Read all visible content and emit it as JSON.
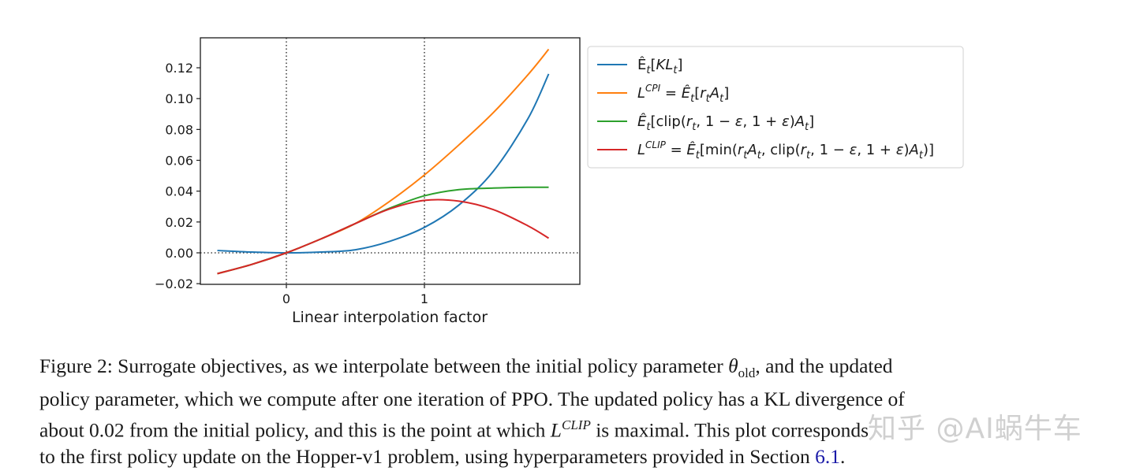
{
  "chart_data": {
    "type": "line",
    "title": "",
    "xlabel": "Linear interpolation factor",
    "ylabel": "",
    "xlim": [
      -0.62,
      2.12
    ],
    "ylim": [
      -0.0205,
      0.139
    ],
    "xticks": [
      0,
      1
    ],
    "xtick_labels": [
      "0",
      "1"
    ],
    "yticks": [
      -0.02,
      0.0,
      0.02,
      0.04,
      0.06,
      0.08,
      0.1,
      0.12
    ],
    "ytick_labels": [
      "−0.02",
      "0.00",
      "0.02",
      "0.04",
      "0.06",
      "0.08",
      "0.10",
      "0.12"
    ],
    "grid": false,
    "reference_lines": [
      {
        "orientation": "vertical",
        "x": 0,
        "style": "dotted"
      },
      {
        "orientation": "vertical",
        "x": 1,
        "style": "dotted"
      },
      {
        "orientation": "horizontal",
        "y": 0,
        "style": "dotted"
      }
    ],
    "legend_position": "outside right, upper",
    "x": [
      -0.5,
      -0.25,
      0.0,
      0.25,
      0.5,
      0.75,
      1.0,
      1.25,
      1.5,
      1.75,
      1.9
    ],
    "series": [
      {
        "name": "Ê_t[KL_t]",
        "color": "#1f77b4",
        "values": [
          0.0015,
          0.0005,
          0.0,
          0.0005,
          0.002,
          0.0075,
          0.0165,
          0.031,
          0.053,
          0.087,
          0.116
        ]
      },
      {
        "name": "L^CPI = Ê_t[r_t A_t]",
        "color": "#ff7f0e",
        "values": [
          -0.0135,
          -0.0075,
          0.0,
          0.009,
          0.019,
          0.0335,
          0.0505,
          0.07,
          0.091,
          0.1155,
          0.132
        ]
      },
      {
        "name": "Ê_t[clip(r_t, 1−ε, 1+ε)A_t]",
        "color": "#2ca02c",
        "values": [
          -0.0135,
          -0.0075,
          0.0,
          0.009,
          0.019,
          0.029,
          0.037,
          0.041,
          0.042,
          0.0425,
          0.0425
        ]
      },
      {
        "name": "L^CLIP = Ê_t[min(r_t A_t, clip(r_t, 1−ε, 1+ε)A_t)]",
        "color": "#d62728",
        "values": [
          -0.0135,
          -0.0075,
          0.0,
          0.009,
          0.019,
          0.0285,
          0.034,
          0.0335,
          0.028,
          0.0175,
          0.0095
        ]
      }
    ]
  },
  "legend": {
    "items": [
      {
        "color": "#1f77b4",
        "parts": [
          [
            "Ê",
            "n"
          ],
          [
            "t",
            "sub"
          ],
          [
            "[",
            "n"
          ],
          [
            "KL",
            "i"
          ],
          [
            "t",
            "sub"
          ],
          [
            "]",
            "n"
          ]
        ]
      },
      {
        "color": "#ff7f0e",
        "parts": [
          [
            "L",
            "i"
          ],
          [
            "CPI",
            "sup"
          ],
          [
            " = ",
            "n"
          ],
          [
            "Ê",
            "i"
          ],
          [
            "t",
            "sub"
          ],
          [
            "[",
            "n"
          ],
          [
            "r",
            "i"
          ],
          [
            "t",
            "sub"
          ],
          [
            "A",
            "i"
          ],
          [
            "t",
            "sub"
          ],
          [
            "]",
            "n"
          ]
        ]
      },
      {
        "color": "#2ca02c",
        "parts": [
          [
            "Ê",
            "i"
          ],
          [
            "t",
            "sub"
          ],
          [
            "[clip(",
            "n"
          ],
          [
            "r",
            "i"
          ],
          [
            "t",
            "sub"
          ],
          [
            ", 1 − ",
            "n"
          ],
          [
            "ε",
            "i"
          ],
          [
            ", 1 + ",
            "n"
          ],
          [
            "ε",
            "i"
          ],
          [
            ")",
            "n"
          ],
          [
            "A",
            "i"
          ],
          [
            "t",
            "sub"
          ],
          [
            "]",
            "n"
          ]
        ]
      },
      {
        "color": "#d62728",
        "parts": [
          [
            "L",
            "i"
          ],
          [
            "CLIP",
            "sup"
          ],
          [
            " = ",
            "n"
          ],
          [
            "Ê",
            "i"
          ],
          [
            "t",
            "sub"
          ],
          [
            "[min(",
            "n"
          ],
          [
            "r",
            "i"
          ],
          [
            "t",
            "sub"
          ],
          [
            "A",
            "i"
          ],
          [
            "t",
            "sub"
          ],
          [
            ", clip(",
            "n"
          ],
          [
            "r",
            "i"
          ],
          [
            "t",
            "sub"
          ],
          [
            ", 1 − ",
            "n"
          ],
          [
            "ε",
            "i"
          ],
          [
            ", 1 + ",
            "n"
          ],
          [
            "ε",
            "i"
          ],
          [
            ")",
            "n"
          ],
          [
            "A",
            "i"
          ],
          [
            "t",
            "sub"
          ],
          [
            ")]",
            "n"
          ]
        ]
      }
    ]
  },
  "caption": {
    "line1_a": "Figure 2: Surrogate objectives, as we interpolate between the initial policy parameter ",
    "theta": "θ",
    "theta_sub": "old",
    "line1_b": ", and the updated",
    "line2": "policy parameter, which we compute after one iteration of PPO. The updated policy has a KL divergence of",
    "line3_a": "about 0.02 from the initial policy, and this is the point at which ",
    "lclip": "L",
    "lclip_sup": "CLIP",
    "line3_b": " is maximal.  This plot corresponds",
    "line4_a": "to the first policy update on the Hopper-v1 problem, using hyperparameters provided in Section ",
    "section_ref": "6.1",
    "line4_b": "."
  },
  "watermark": "知乎 @AI蜗牛车"
}
